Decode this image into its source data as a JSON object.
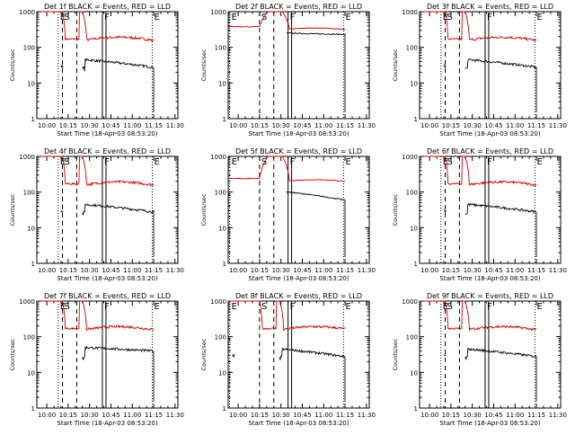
{
  "figure": {
    "shared": {
      "ylabel": "Counts/sec",
      "xlabel": "Start Time (18-Apr-03 08:53:20)",
      "x_tick_labels": [
        "10:00",
        "10:15",
        "10:30",
        "10:45",
        "11:00",
        "11:15",
        "11:30"
      ],
      "y_tick_labels": [
        "1",
        "10",
        "100",
        "1000"
      ],
      "marker_labels": [
        "E",
        "S",
        "F",
        "E"
      ],
      "colors": {
        "events": "#000000",
        "lld": "#cc0000",
        "axes": "#000000",
        "background": "#ffffff"
      }
    }
  },
  "chart_data": [
    {
      "type": "line",
      "title": "Det 1f BLACK = Events, RED = LLD",
      "xlabel": "Start Time (18-Apr-03 08:53:20)",
      "ylabel": "Counts/sec",
      "xlim": [
        "09:53",
        "11:32"
      ],
      "ylim": [
        1,
        1000
      ],
      "yscale": "log",
      "markers": [
        {
          "label": "E",
          "time": "10:08"
        },
        {
          "label": "S",
          "time": "10:11"
        },
        {
          "label": "F",
          "time": "10:39"
        },
        {
          "label": "E",
          "time": "11:14"
        }
      ],
      "series": [
        {
          "name": "LLD",
          "color": "red",
          "shape": "orbit",
          "baseline": 170,
          "spike_peak": 1000
        },
        {
          "name": "Events",
          "color": "black",
          "shape": "orbit",
          "plateau": 45,
          "end_value": 28
        }
      ]
    },
    {
      "type": "line",
      "title": "Det 2f BLACK = Events, RED = LLD",
      "xlabel": "Start Time (18-Apr-03 08:53:20)",
      "ylabel": "Counts/sec",
      "xlim": [
        "09:53",
        "11:32"
      ],
      "ylim": [
        1,
        1000
      ],
      "yscale": "log",
      "markers": [
        {
          "label": "E",
          "time": "09:54"
        },
        {
          "label": "S",
          "time": "10:15"
        },
        {
          "label": "F",
          "time": "10:35"
        },
        {
          "label": "E",
          "time": "11:14"
        }
      ],
      "series": [
        {
          "name": "LLD",
          "color": "red",
          "shape": "flare",
          "baseline": 380,
          "spike_peak": 1000
        },
        {
          "name": "Events",
          "color": "black",
          "shape": "flare",
          "plateau": 250,
          "end_value": 230
        }
      ]
    },
    {
      "type": "line",
      "title": "Det 3f BLACK = Events, RED = LLD",
      "xlabel": "Start Time (18-Apr-03 08:53:20)",
      "ylabel": "Counts/sec",
      "xlim": [
        "09:53",
        "11:32"
      ],
      "ylim": [
        1,
        1000
      ],
      "yscale": "log",
      "markers": [
        {
          "label": "E",
          "time": "10:08"
        },
        {
          "label": "S",
          "time": "10:11"
        },
        {
          "label": "F",
          "time": "10:39"
        },
        {
          "label": "E",
          "time": "11:14"
        }
      ],
      "series": [
        {
          "name": "LLD",
          "color": "red",
          "shape": "orbit",
          "baseline": 170,
          "spike_peak": 1000
        },
        {
          "name": "Events",
          "color": "black",
          "shape": "orbit",
          "plateau": 45,
          "end_value": 28
        }
      ]
    },
    {
      "type": "line",
      "title": "Det 4f BLACK = Events, RED = LLD",
      "xlabel": "Start Time (18-Apr-03 08:53:20)",
      "ylabel": "Counts/sec",
      "xlim": [
        "09:53",
        "11:32"
      ],
      "ylim": [
        1,
        1000
      ],
      "yscale": "log",
      "markers": [
        {
          "label": "E",
          "time": "10:08"
        },
        {
          "label": "S",
          "time": "10:11"
        },
        {
          "label": "F",
          "time": "10:39"
        },
        {
          "label": "E",
          "time": "11:14"
        }
      ],
      "series": [
        {
          "name": "LLD",
          "color": "red",
          "shape": "orbit",
          "baseline": 170,
          "spike_peak": 1000
        },
        {
          "name": "Events",
          "color": "black",
          "shape": "orbit",
          "plateau": 45,
          "end_value": 28
        }
      ]
    },
    {
      "type": "line",
      "title": "Det 5f BLACK = Events, RED = LLD",
      "xlabel": "Start Time (18-Apr-03 08:53:20)",
      "ylabel": "Counts/sec",
      "xlim": [
        "09:53",
        "11:32"
      ],
      "ylim": [
        1,
        1000
      ],
      "yscale": "log",
      "markers": [
        {
          "label": "E",
          "time": "09:54"
        },
        {
          "label": "S",
          "time": "10:15"
        },
        {
          "label": "F",
          "time": "10:35"
        },
        {
          "label": "E",
          "time": "11:14"
        }
      ],
      "series": [
        {
          "name": "LLD",
          "color": "red",
          "shape": "flare",
          "baseline": 240,
          "spike_peak": 1000
        },
        {
          "name": "Events",
          "color": "black",
          "shape": "flare",
          "plateau": 100,
          "end_value": 60
        }
      ]
    },
    {
      "type": "line",
      "title": "Det 6f BLACK = Events, RED = LLD",
      "xlabel": "Start Time (18-Apr-03 08:53:20)",
      "ylabel": "Counts/sec",
      "xlim": [
        "09:53",
        "11:32"
      ],
      "ylim": [
        1,
        1000
      ],
      "yscale": "log",
      "markers": [
        {
          "label": "E",
          "time": "10:08"
        },
        {
          "label": "S",
          "time": "10:11"
        },
        {
          "label": "F",
          "time": "10:39"
        },
        {
          "label": "E",
          "time": "11:14"
        }
      ],
      "series": [
        {
          "name": "LLD",
          "color": "red",
          "shape": "orbit",
          "baseline": 170,
          "spike_peak": 1000
        },
        {
          "name": "Events",
          "color": "black",
          "shape": "orbit",
          "plateau": 45,
          "end_value": 28
        }
      ]
    },
    {
      "type": "line",
      "title": "Det 7f BLACK = Events, RED = LLD",
      "xlabel": "Start Time (18-Apr-03 08:53:20)",
      "ylabel": "Counts/sec",
      "xlim": [
        "09:53",
        "11:32"
      ],
      "ylim": [
        1,
        1000
      ],
      "yscale": "log",
      "markers": [
        {
          "label": "E",
          "time": "10:08"
        },
        {
          "label": "S",
          "time": "10:11"
        },
        {
          "label": "F",
          "time": "10:39"
        },
        {
          "label": "E",
          "time": "11:14"
        }
      ],
      "series": [
        {
          "name": "LLD",
          "color": "red",
          "shape": "orbit",
          "baseline": 170,
          "spike_peak": 1000
        },
        {
          "name": "Events",
          "color": "black",
          "shape": "orbit",
          "plateau": 50,
          "end_value": 40
        }
      ]
    },
    {
      "type": "line",
      "title": "Det 8f BLACK = Events, RED = LLD",
      "xlabel": "Start Time (18-Apr-03 08:53:20)",
      "ylabel": "Counts/sec",
      "xlim": [
        "09:53",
        "11:32"
      ],
      "ylim": [
        1,
        1000
      ],
      "yscale": "log",
      "markers": [
        {
          "label": "E",
          "time": "09:54"
        },
        {
          "label": "S",
          "time": "10:15"
        },
        {
          "label": "F",
          "time": "10:35"
        },
        {
          "label": "E",
          "time": "11:14"
        }
      ],
      "series": [
        {
          "name": "LLD",
          "color": "red",
          "shape": "orbit",
          "baseline": 170,
          "spike_peak": 1000
        },
        {
          "name": "Events",
          "color": "black",
          "shape": "orbit",
          "plateau": 45,
          "end_value": 28
        }
      ]
    },
    {
      "type": "line",
      "title": "Det 9f BLACK = Events, RED = LLD",
      "xlabel": "Start Time (18-Apr-03 08:53:20)",
      "ylabel": "Counts/sec",
      "xlim": [
        "09:53",
        "11:32"
      ],
      "ylim": [
        1,
        1000
      ],
      "yscale": "log",
      "markers": [
        {
          "label": "E",
          "time": "10:08"
        },
        {
          "label": "S",
          "time": "10:11"
        },
        {
          "label": "F",
          "time": "10:39"
        },
        {
          "label": "E",
          "time": "11:14"
        }
      ],
      "series": [
        {
          "name": "LLD",
          "color": "red",
          "shape": "orbit",
          "baseline": 170,
          "spike_peak": 1000
        },
        {
          "name": "Events",
          "color": "black",
          "shape": "orbit",
          "plateau": 45,
          "end_value": 28
        }
      ]
    }
  ]
}
